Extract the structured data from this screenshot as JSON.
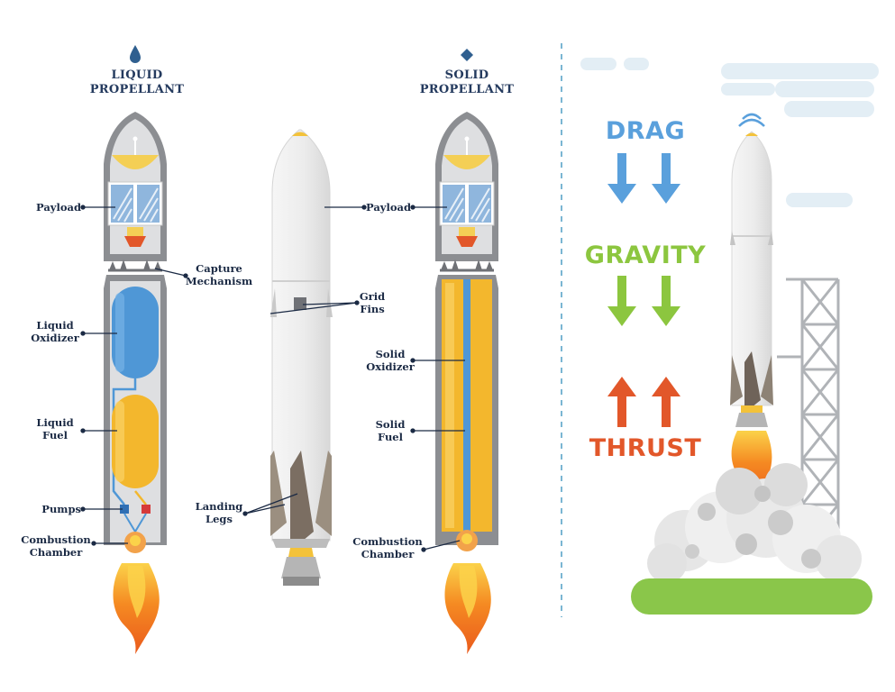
{
  "columns": {
    "liquid": {
      "heading": "LIQUID\nPROPELLANT",
      "labels": {
        "payload": "Payload",
        "capture": "Capture\nMechanism",
        "oxidizer": "Liquid\nOxidizer",
        "fuel": "Liquid\nFuel",
        "pumps": "Pumps",
        "chamber": "Combustion\nChamber"
      }
    },
    "middle": {
      "labels": {
        "grid_fins": "Grid\nFins",
        "landing_legs": "Landing\nLegs"
      }
    },
    "solid": {
      "heading": "SOLID\nPROPELLANT",
      "labels": {
        "payload": "Payload",
        "oxidizer": "Solid\nOxidizer",
        "fuel": "Solid\nFuel",
        "chamber": "Combustion\nChamber"
      }
    }
  },
  "forces": {
    "drag": {
      "label": "DRAG",
      "color": "#5aa0dc",
      "direction": "down"
    },
    "gravity": {
      "label": "GRAVITY",
      "color": "#8cc63f",
      "direction": "down"
    },
    "thrust": {
      "label": "THRUST",
      "color": "#e2572a",
      "direction": "up"
    }
  },
  "colors": {
    "oxidizer_blue": "#4f97d6",
    "fuel_yellow": "#f3b72d",
    "body_gray": "#a7a9ad",
    "flame_orange": "#f07a21",
    "ground_green": "#8ac64a",
    "label_navy": "#1b2a44"
  }
}
